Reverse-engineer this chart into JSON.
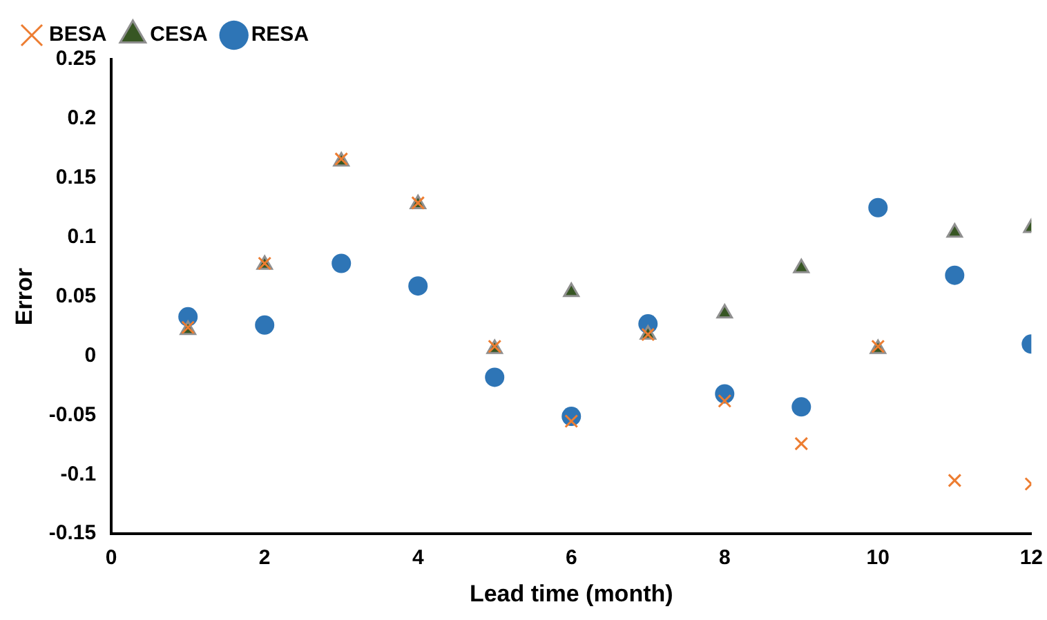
{
  "chart_data": {
    "type": "scatter",
    "xlabel": "Lead time (month)",
    "ylabel": "Error",
    "x": [
      1,
      2,
      3,
      4,
      5,
      6,
      7,
      8,
      9,
      10,
      11,
      12
    ],
    "xlim": [
      0,
      12
    ],
    "xticks": [
      0,
      2,
      4,
      6,
      8,
      10,
      12
    ],
    "ylim": [
      -0.15,
      0.25
    ],
    "yticks": [
      -0.15,
      -0.1,
      -0.05,
      0,
      0.05,
      0.1,
      0.15,
      0.2,
      0.25
    ],
    "grid": false,
    "legend": "top left",
    "series": [
      {
        "name": "BESA",
        "color": "#ed7d31",
        "marker": "cross",
        "values": [
          0.024,
          0.078,
          0.166,
          0.129,
          0.008,
          -0.055,
          0.018,
          -0.038,
          -0.074,
          0.008,
          -0.105,
          -0.108
        ]
      },
      {
        "name": "CESA",
        "color": "#375623",
        "marker": "triangle",
        "values": [
          0.022,
          0.077,
          0.164,
          0.128,
          0.006,
          0.054,
          0.018,
          0.036,
          0.074,
          0.006,
          0.104,
          0.108
        ]
      },
      {
        "name": "RESA",
        "color": "#2e75b6",
        "marker": "circle",
        "values": [
          0.033,
          0.026,
          0.078,
          0.059,
          -0.018,
          -0.051,
          0.027,
          -0.032,
          -0.043,
          0.125,
          0.068,
          0.01
        ]
      }
    ]
  }
}
